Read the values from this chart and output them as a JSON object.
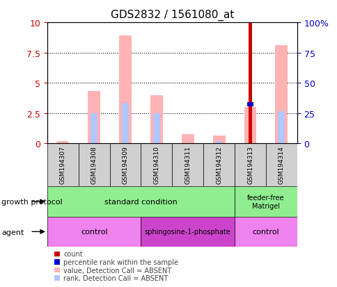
{
  "title": "GDS2832 / 1561080_at",
  "samples": [
    "GSM194307",
    "GSM194308",
    "GSM194309",
    "GSM194310",
    "GSM194311",
    "GSM194312",
    "GSM194313",
    "GSM194314"
  ],
  "ylim_left": [
    0,
    10
  ],
  "ylim_right": [
    0,
    100
  ],
  "yticks_left": [
    0,
    2.5,
    5,
    7.5,
    10
  ],
  "yticks_right": [
    0,
    25,
    50,
    75,
    100
  ],
  "value_bars": [
    0.12,
    4.3,
    8.9,
    3.95,
    0.75,
    0.65,
    3.0,
    8.1
  ],
  "rank_bars": [
    0.0,
    2.45,
    3.35,
    2.45,
    0.0,
    0.0,
    0.0,
    2.65
  ],
  "count_bar": [
    0,
    0,
    0,
    0,
    0,
    0,
    10.0,
    0
  ],
  "percentile_bar": [
    0,
    0,
    0,
    0,
    0,
    0,
    3.2,
    0
  ],
  "small_rank_markers": [
    0,
    0,
    0,
    0,
    0,
    1,
    0,
    0
  ],
  "small_value_markers": [
    1,
    0,
    0,
    0,
    0,
    0,
    0,
    0
  ],
  "value_color": "#ffb3b3",
  "rank_color": "#b3c6ff",
  "count_color": "#cc0000",
  "percentile_color": "#0000cc",
  "sample_box_color": "#d0d0d0",
  "growth_color": "#90ee90",
  "agent_control_color": "#ee82ee",
  "agent_sph_color": "#cc44cc",
  "left_axis_color": "#cc0000",
  "right_axis_color": "#0000cc",
  "background_color": "#ffffff"
}
